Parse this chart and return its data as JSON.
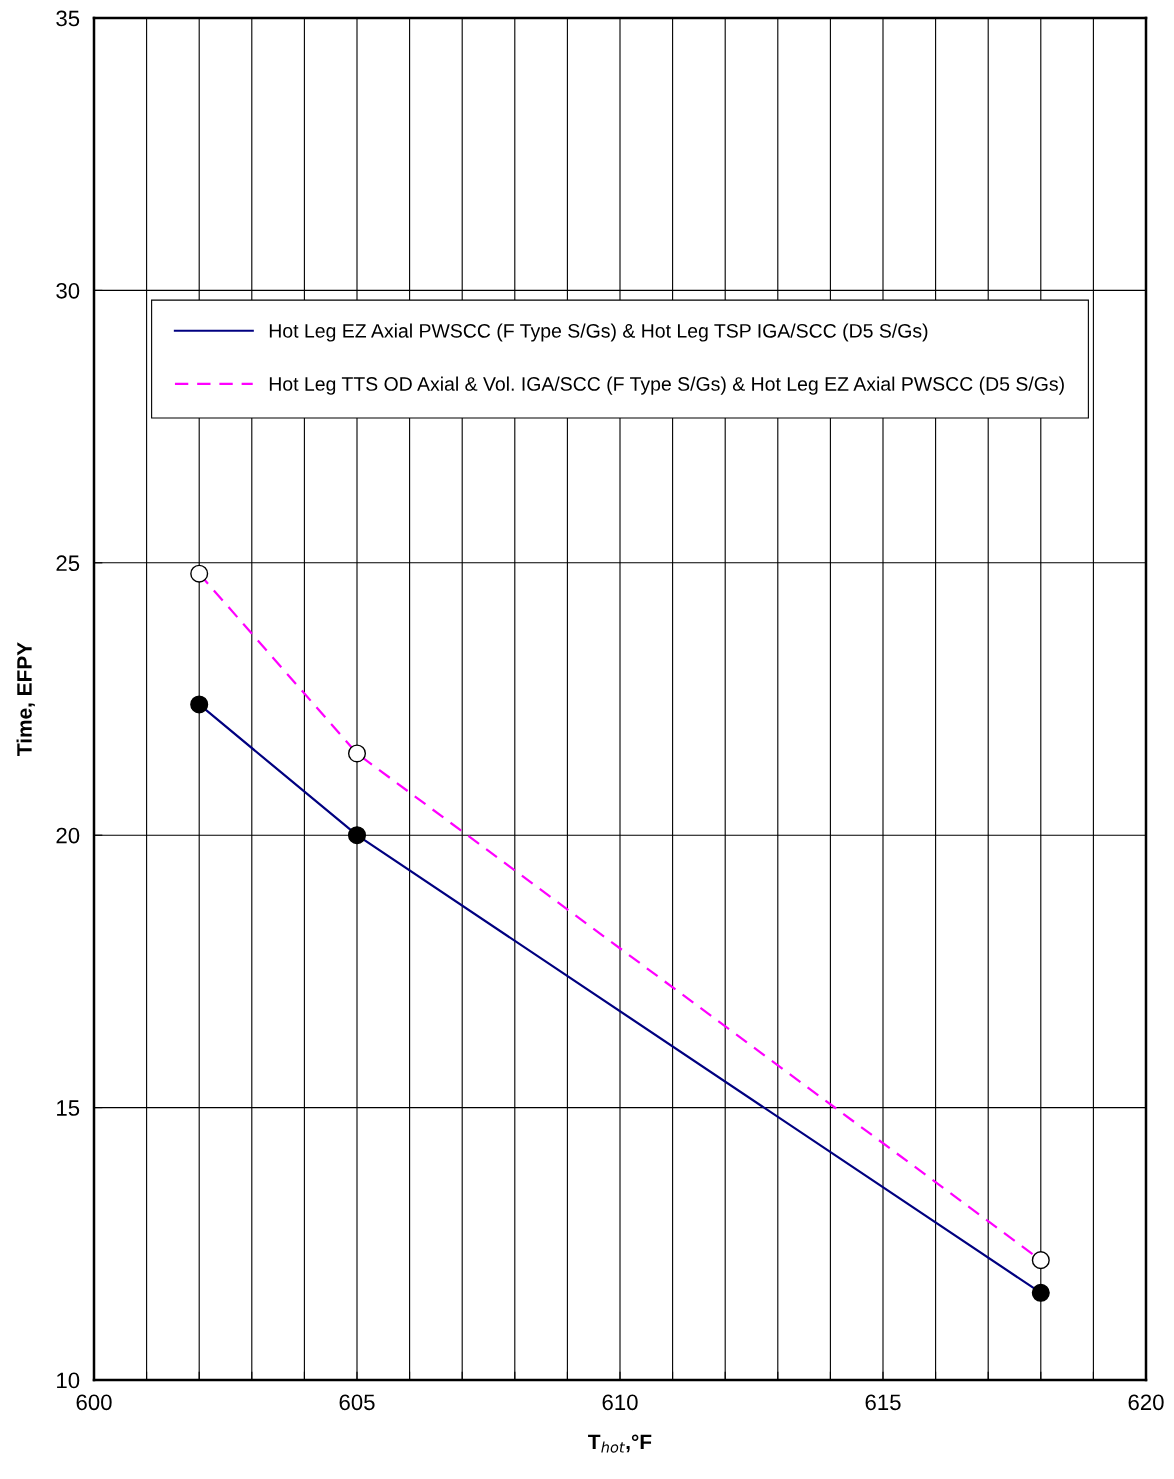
{
  "chart_data": {
    "type": "line",
    "xlabel": "T$_{hot}$,°F",
    "ylabel": "Time, EFPY",
    "x": [
      602,
      605,
      618
    ],
    "series": [
      {
        "name": "Hot Leg EZ Axial PWSCC (F Type S/Gs) & Hot Leg TSP IGA/SCC (D5 S/Gs)",
        "color": "#000080",
        "values": [
          22.4,
          20.0,
          11.6
        ],
        "marker": "circle",
        "line_style": "solid"
      },
      {
        "name": "Hot Leg TTS OD Axial & Vol. IGA/SCC (F Type S/Gs) & Hot Leg EZ Axial PWSCC (D5 S/Gs)",
        "color": "#ff00ff",
        "values": [
          24.8,
          21.5,
          12.2
        ],
        "marker": "circle",
        "line_style": "dashed"
      }
    ],
    "xlim": [
      600,
      620
    ],
    "xticks": [
      600,
      {
        "value": 601,
        "label": null
      },
      {
        "value": 602,
        "label": null
      },
      {
        "value": 603,
        "label": null
      },
      {
        "value": 604,
        "label": null
      },
      605,
      {
        "value": 606,
        "label": null
      },
      {
        "value": 607,
        "label": null
      },
      {
        "value": 608,
        "label": null
      },
      {
        "value": 609,
        "label": null
      },
      610,
      {
        "value": 611,
        "label": null
      },
      {
        "value": 612,
        "label": null
      },
      {
        "value": 613,
        "label": null
      },
      {
        "value": 614,
        "label": null
      },
      615,
      {
        "value": 616,
        "label": null
      },
      {
        "value": 617,
        "label": null
      },
      {
        "value": 618,
        "label": null
      },
      {
        "value": 619,
        "label": null
      },
      620
    ],
    "ylim": [
      10,
      35
    ],
    "yticks": [
      10,
      15,
      20,
      25,
      30,
      35
    ],
    "grid": true,
    "legend": "top"
  }
}
